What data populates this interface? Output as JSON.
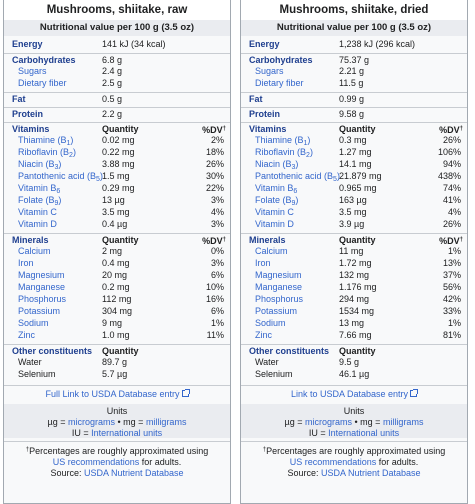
{
  "panels": [
    {
      "title": "Mushrooms, shiitake, raw",
      "header": "Nutritional value per 100 g (3.5 oz)",
      "energy": {
        "label": "Energy",
        "value": "141 kJ (34 kcal)"
      },
      "carbs": {
        "label": "Carbohydrates",
        "value": "6.8 g"
      },
      "sugars": {
        "label": "Sugars",
        "value": "2.4 g"
      },
      "fiber": {
        "label": "Dietary fiber",
        "value": "2.5 g"
      },
      "fat": {
        "label": "Fat",
        "value": "0.5 g"
      },
      "protein": {
        "label": "Protein",
        "value": "2.2 g"
      },
      "vitamins_label": "Vitamins",
      "quantity_label": "Quantity",
      "dv_label": "%DV",
      "dv_mark": "†",
      "vitamins": [
        {
          "name": "Thiamine (B",
          "sub": "1",
          "tail": ")",
          "qty": "0.02 mg",
          "dv": "2%"
        },
        {
          "name": "Riboflavin (B",
          "sub": "2",
          "tail": ")",
          "qty": "0.22 mg",
          "dv": "18%"
        },
        {
          "name": "Niacin (B",
          "sub": "3",
          "tail": ")",
          "qty": "3.88 mg",
          "dv": "26%"
        },
        {
          "name": "Pantothenic acid (B",
          "sub": "5",
          "tail": ")",
          "qty": "1.5 mg",
          "dv": "30%"
        },
        {
          "name": "Vitamin B",
          "sub": "6",
          "tail": "",
          "qty": "0.29 mg",
          "dv": "22%"
        },
        {
          "name": "Folate (B",
          "sub": "9",
          "tail": ")",
          "qty": "13 µg",
          "dv": "3%"
        },
        {
          "name": "Vitamin C",
          "sub": "",
          "tail": "",
          "qty": "3.5 mg",
          "dv": "4%"
        },
        {
          "name": "Vitamin D",
          "sub": "",
          "tail": "",
          "qty": "0.4 µg",
          "dv": "3%"
        }
      ],
      "minerals_label": "Minerals",
      "minerals": [
        {
          "name": "Calcium",
          "qty": "2 mg",
          "dv": "0%"
        },
        {
          "name": "Iron",
          "qty": "0.4 mg",
          "dv": "3%"
        },
        {
          "name": "Magnesium",
          "qty": "20 mg",
          "dv": "6%"
        },
        {
          "name": "Manganese",
          "qty": "0.2 mg",
          "dv": "10%"
        },
        {
          "name": "Phosphorus",
          "qty": "112 mg",
          "dv": "16%"
        },
        {
          "name": "Potassium",
          "qty": "304 mg",
          "dv": "6%"
        },
        {
          "name": "Sodium",
          "qty": "9 mg",
          "dv": "1%"
        },
        {
          "name": "Zinc",
          "qty": "1.0 mg",
          "dv": "11%"
        }
      ],
      "other_label": "Other constituents",
      "other": [
        {
          "name": "Water",
          "qty": "89.7 g"
        },
        {
          "name": "Selenium",
          "qty": "5.7 µg"
        }
      ],
      "full_link": "Full Link to USDA Database entry",
      "units_title": "Units",
      "units_line1_a": "µg = ",
      "units_line1_b": "micrograms",
      "units_line1_c": " • mg = ",
      "units_line1_d": "milligrams",
      "units_line2_a": "IU = ",
      "units_line2_b": "International units",
      "note_mark": "†",
      "note_line1": "Percentages are roughly approximated using",
      "note_line2_link": "US recommendations",
      "note_line2_tail": " for adults.",
      "source_label": "Source: ",
      "source_link": "USDA Nutrient Database"
    },
    {
      "title": "Mushrooms, shiitake, dried",
      "header": "Nutritional value per 100 g (3.5 oz)",
      "energy": {
        "label": "Energy",
        "value": "1,238 kJ (296 kcal)"
      },
      "carbs": {
        "label": "Carbohydrates",
        "value": "75.37 g"
      },
      "sugars": {
        "label": "Sugars",
        "value": "2.21 g"
      },
      "fiber": {
        "label": "Dietary fiber",
        "value": "11.5 g"
      },
      "fat": {
        "label": "Fat",
        "value": "0.99 g"
      },
      "protein": {
        "label": "Protein",
        "value": "9.58 g"
      },
      "vitamins_label": "Vitamins",
      "quantity_label": "Quantity",
      "dv_label": "%DV",
      "dv_mark": "†",
      "vitamins": [
        {
          "name": "Thiamine (B",
          "sub": "1",
          "tail": ")",
          "qty": "0.3 mg",
          "dv": "26%"
        },
        {
          "name": "Riboflavin (B",
          "sub": "2",
          "tail": ")",
          "qty": "1.27 mg",
          "dv": "106%"
        },
        {
          "name": "Niacin (B",
          "sub": "3",
          "tail": ")",
          "qty": "14.1 mg",
          "dv": "94%"
        },
        {
          "name": "Pantothenic acid (B",
          "sub": "5",
          "tail": ")",
          "qty": "21.879 mg",
          "dv": "438%"
        },
        {
          "name": "Vitamin B",
          "sub": "6",
          "tail": "",
          "qty": "0.965 mg",
          "dv": "74%"
        },
        {
          "name": "Folate (B",
          "sub": "9",
          "tail": ")",
          "qty": "163 µg",
          "dv": "41%"
        },
        {
          "name": "Vitamin C",
          "sub": "",
          "tail": "",
          "qty": "3.5 mg",
          "dv": "4%"
        },
        {
          "name": "Vitamin D",
          "sub": "",
          "tail": "",
          "qty": "3.9 µg",
          "dv": "26%"
        }
      ],
      "minerals_label": "Minerals",
      "minerals": [
        {
          "name": "Calcium",
          "qty": "11 mg",
          "dv": "1%"
        },
        {
          "name": "Iron",
          "qty": "1.72 mg",
          "dv": "13%"
        },
        {
          "name": "Magnesium",
          "qty": "132 mg",
          "dv": "37%"
        },
        {
          "name": "Manganese",
          "qty": "1.176 mg",
          "dv": "56%"
        },
        {
          "name": "Phosphorus",
          "qty": "294 mg",
          "dv": "42%"
        },
        {
          "name": "Potassium",
          "qty": "1534 mg",
          "dv": "33%"
        },
        {
          "name": "Sodium",
          "qty": "13 mg",
          "dv": "1%"
        },
        {
          "name": "Zinc",
          "qty": "7.66 mg",
          "dv": "81%"
        }
      ],
      "other_label": "Other constituents",
      "other": [
        {
          "name": "Water",
          "qty": "9.5 g"
        },
        {
          "name": "Selenium",
          "qty": "46.1 µg"
        }
      ],
      "full_link": "Link to USDA Database entry",
      "units_title": "Units",
      "units_line1_a": "µg = ",
      "units_line1_b": "micrograms",
      "units_line1_c": " • mg = ",
      "units_line1_d": "milligrams",
      "units_line2_a": "IU = ",
      "units_line2_b": "International units",
      "note_mark": "†",
      "note_line1": "Percentages are roughly approximated using",
      "note_line2_link": "US recommendations",
      "note_line2_tail": " for adults.",
      "source_label": "Source: ",
      "source_link": "USDA Nutrient Database"
    }
  ]
}
